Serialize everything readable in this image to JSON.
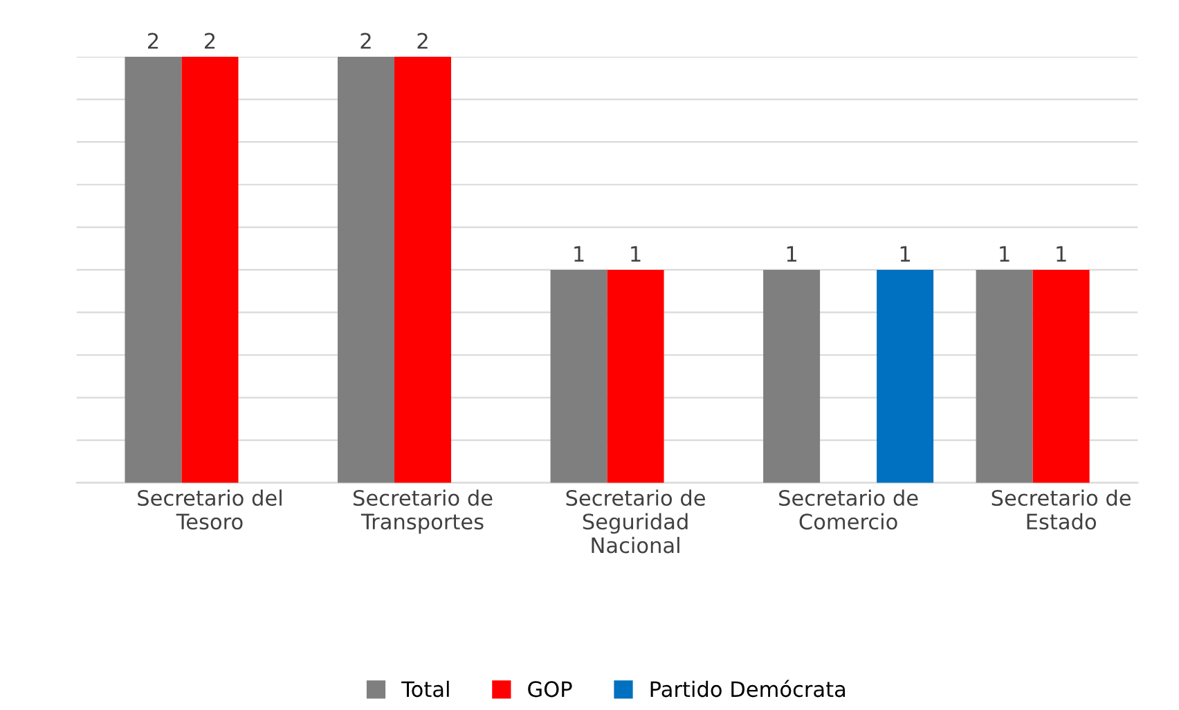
{
  "chart_data": {
    "type": "bar",
    "categories": [
      "Secretario del\nTesoro",
      "Secretario de\nTransportes",
      "Secretario de\nSeguridad\nNacional",
      "Secretario de\nComercio",
      "Secretario de\nEstado"
    ],
    "series": [
      {
        "name": "Total",
        "color": "#7f7f7f",
        "values": [
          2,
          2,
          1,
          1,
          1
        ]
      },
      {
        "name": "GOP",
        "color": "#ff0000",
        "values": [
          2,
          2,
          1,
          null,
          1
        ]
      },
      {
        "name": "Partido Demócrata",
        "color": "#0070c0",
        "values": [
          null,
          null,
          null,
          1,
          null
        ]
      }
    ],
    "ylim": [
      0,
      2
    ],
    "yticks": [
      {
        "value": 0,
        "label": null
      },
      {
        "value": 0.2,
        "label": null
      },
      {
        "value": 0.4,
        "label": null
      },
      {
        "value": 0.6,
        "label": null
      },
      {
        "value": 0.8,
        "label": null
      },
      {
        "value": 1,
        "label": null
      },
      {
        "value": 1.2,
        "label": null
      },
      {
        "value": 1.4,
        "label": null
      },
      {
        "value": 1.6,
        "label": null
      },
      {
        "value": 1.8,
        "label": null
      },
      {
        "value": 2,
        "label": null
      }
    ],
    "grid": "y",
    "legend": "bottom",
    "data_labels": true,
    "tick_labels": "x"
  }
}
